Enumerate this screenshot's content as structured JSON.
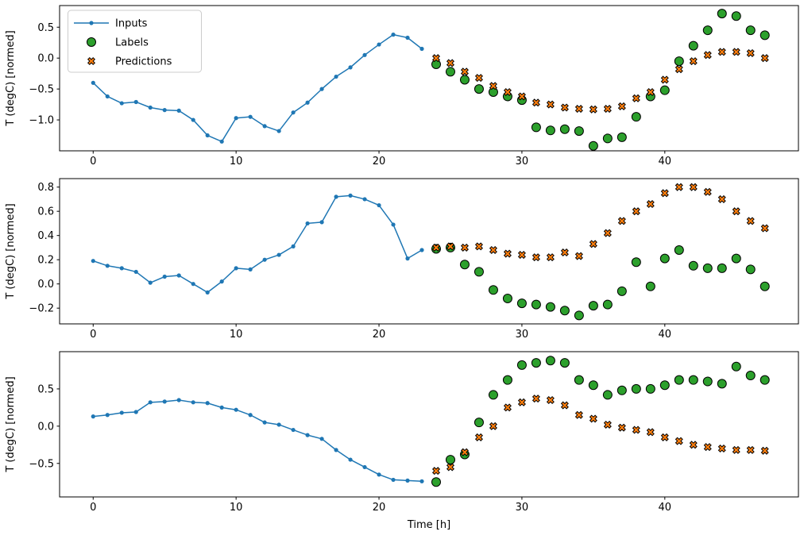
{
  "figure": {
    "background_color": "#ffffff",
    "text_color": "#000000",
    "frame_color": "#000000",
    "legend": {
      "position": "upper left",
      "border_color": "#cccccc",
      "entries": [
        {
          "label": "Inputs",
          "marker": "line-dot",
          "color": "#1f77b4"
        },
        {
          "label": "Labels",
          "marker": "circle",
          "color": "#2ca02c"
        },
        {
          "label": "Predictions",
          "marker": "x-filled",
          "color": "#ff7f0e"
        }
      ]
    }
  },
  "chart_data": [
    {
      "type": "line",
      "title": "",
      "xlabel": "",
      "ylabel": "T (degC) [normed]",
      "xlim": [
        -2.35,
        49.35
      ],
      "ylim": [
        -1.5,
        0.85
      ],
      "xticks": [
        0,
        10,
        20,
        30,
        40
      ],
      "yticks": [
        0.5,
        0.0,
        -0.5,
        -1.0
      ],
      "grid": false,
      "show_legend": true,
      "series": [
        {
          "name": "Inputs",
          "marker": "line-dot",
          "color": "#1f77b4",
          "x": [
            0,
            1,
            2,
            3,
            4,
            5,
            6,
            7,
            8,
            9,
            10,
            11,
            12,
            13,
            14,
            15,
            16,
            17,
            18,
            19,
            20,
            21,
            22,
            23
          ],
          "y": [
            -0.4,
            -0.62,
            -0.73,
            -0.71,
            -0.8,
            -0.84,
            -0.85,
            -1.0,
            -1.25,
            -1.35,
            -0.97,
            -0.95,
            -1.1,
            -1.18,
            -0.88,
            -0.72,
            -0.5,
            -0.3,
            -0.15,
            0.05,
            0.22,
            0.38,
            0.33,
            0.15
          ]
        },
        {
          "name": "Labels",
          "marker": "circle",
          "color": "#2ca02c",
          "x": [
            24,
            25,
            26,
            27,
            28,
            29,
            30,
            31,
            32,
            33,
            34,
            35,
            36,
            37,
            38,
            39,
            40,
            41,
            42,
            43,
            44,
            45,
            46,
            47
          ],
          "y": [
            -0.1,
            -0.22,
            -0.35,
            -0.5,
            -0.55,
            -0.62,
            -0.68,
            -1.12,
            -1.17,
            -1.15,
            -1.18,
            -1.42,
            -1.3,
            -1.28,
            -0.95,
            -0.62,
            -0.52,
            -0.05,
            0.2,
            0.45,
            0.72,
            0.68,
            0.45,
            0.37
          ]
        },
        {
          "name": "Predictions",
          "marker": "x-filled",
          "color": "#ff7f0e",
          "x": [
            24,
            25,
            26,
            27,
            28,
            29,
            30,
            31,
            32,
            33,
            34,
            35,
            36,
            37,
            38,
            39,
            40,
            41,
            42,
            43,
            44,
            45,
            46,
            47
          ],
          "y": [
            0.0,
            -0.08,
            -0.22,
            -0.32,
            -0.45,
            -0.55,
            -0.62,
            -0.72,
            -0.75,
            -0.8,
            -0.82,
            -0.83,
            -0.82,
            -0.78,
            -0.65,
            -0.55,
            -0.35,
            -0.18,
            -0.05,
            0.05,
            0.1,
            0.1,
            0.08,
            0.0
          ]
        }
      ]
    },
    {
      "type": "line",
      "title": "",
      "xlabel": "",
      "ylabel": "T (degC) [normed]",
      "xlim": [
        -2.35,
        49.35
      ],
      "ylim": [
        -0.33,
        0.87
      ],
      "xticks": [
        0,
        10,
        20,
        30,
        40
      ],
      "yticks": [
        0.8,
        0.6,
        0.4,
        0.2,
        0.0,
        -0.2
      ],
      "grid": false,
      "show_legend": false,
      "series": [
        {
          "name": "Inputs",
          "marker": "line-dot",
          "color": "#1f77b4",
          "x": [
            0,
            1,
            2,
            3,
            4,
            5,
            6,
            7,
            8,
            9,
            10,
            11,
            12,
            13,
            14,
            15,
            16,
            17,
            18,
            19,
            20,
            21,
            22,
            23
          ],
          "y": [
            0.19,
            0.15,
            0.13,
            0.1,
            0.01,
            0.06,
            0.07,
            0.0,
            -0.07,
            0.02,
            0.13,
            0.12,
            0.2,
            0.24,
            0.31,
            0.5,
            0.51,
            0.72,
            0.73,
            0.7,
            0.65,
            0.49,
            0.21,
            0.28
          ]
        },
        {
          "name": "Labels",
          "marker": "circle",
          "color": "#2ca02c",
          "x": [
            24,
            25,
            26,
            27,
            28,
            29,
            30,
            31,
            32,
            33,
            34,
            35,
            36,
            37,
            38,
            39,
            40,
            41,
            42,
            43,
            44,
            45,
            46,
            47
          ],
          "y": [
            0.29,
            0.3,
            0.16,
            0.1,
            -0.05,
            -0.12,
            -0.16,
            -0.17,
            -0.19,
            -0.22,
            -0.26,
            -0.18,
            -0.17,
            -0.06,
            0.18,
            -0.02,
            0.21,
            0.28,
            0.15,
            0.13,
            0.13,
            0.21,
            0.12,
            -0.02
          ]
        },
        {
          "name": "Predictions",
          "marker": "x-filled",
          "color": "#ff7f0e",
          "x": [
            24,
            25,
            26,
            27,
            28,
            29,
            30,
            31,
            32,
            33,
            34,
            35,
            36,
            37,
            38,
            39,
            40,
            41,
            42,
            43,
            44,
            45,
            46,
            47
          ],
          "y": [
            0.3,
            0.31,
            0.3,
            0.31,
            0.28,
            0.25,
            0.24,
            0.22,
            0.22,
            0.26,
            0.23,
            0.33,
            0.42,
            0.52,
            0.6,
            0.66,
            0.75,
            0.8,
            0.8,
            0.76,
            0.7,
            0.6,
            0.52,
            0.46
          ]
        }
      ]
    },
    {
      "type": "line",
      "title": "",
      "xlabel": "Time [h]",
      "ylabel": "T (degC) [normed]",
      "xlim": [
        -2.35,
        49.35
      ],
      "ylim": [
        -0.95,
        1.0
      ],
      "xticks": [
        0,
        10,
        20,
        30,
        40
      ],
      "yticks": [
        0.5,
        0.0,
        -0.5
      ],
      "grid": false,
      "show_legend": false,
      "series": [
        {
          "name": "Inputs",
          "marker": "line-dot",
          "color": "#1f77b4",
          "x": [
            0,
            1,
            2,
            3,
            4,
            5,
            6,
            7,
            8,
            9,
            10,
            11,
            12,
            13,
            14,
            15,
            16,
            17,
            18,
            19,
            20,
            21,
            22,
            23
          ],
          "y": [
            0.13,
            0.15,
            0.18,
            0.19,
            0.32,
            0.33,
            0.35,
            0.32,
            0.31,
            0.25,
            0.22,
            0.15,
            0.05,
            0.02,
            -0.05,
            -0.12,
            -0.17,
            -0.32,
            -0.45,
            -0.55,
            -0.65,
            -0.72,
            -0.73,
            -0.74
          ]
        },
        {
          "name": "Labels",
          "marker": "circle",
          "color": "#2ca02c",
          "x": [
            24,
            25,
            26,
            27,
            28,
            29,
            30,
            31,
            32,
            33,
            34,
            35,
            36,
            37,
            38,
            39,
            40,
            41,
            42,
            43,
            44,
            45,
            46,
            47
          ],
          "y": [
            -0.75,
            -0.45,
            -0.38,
            0.05,
            0.42,
            0.62,
            0.82,
            0.85,
            0.88,
            0.85,
            0.62,
            0.55,
            0.42,
            0.48,
            0.5,
            0.5,
            0.55,
            0.62,
            0.62,
            0.6,
            0.57,
            0.8,
            0.68,
            0.62
          ]
        },
        {
          "name": "Predictions",
          "marker": "x-filled",
          "color": "#ff7f0e",
          "x": [
            24,
            25,
            26,
            27,
            28,
            29,
            30,
            31,
            32,
            33,
            34,
            35,
            36,
            37,
            38,
            39,
            40,
            41,
            42,
            43,
            44,
            45,
            46,
            47
          ],
          "y": [
            -0.6,
            -0.55,
            -0.35,
            -0.15,
            0.0,
            0.25,
            0.32,
            0.37,
            0.35,
            0.28,
            0.15,
            0.1,
            0.02,
            -0.02,
            -0.05,
            -0.08,
            -0.15,
            -0.2,
            -0.25,
            -0.28,
            -0.3,
            -0.32,
            -0.32,
            -0.33
          ]
        }
      ]
    }
  ]
}
